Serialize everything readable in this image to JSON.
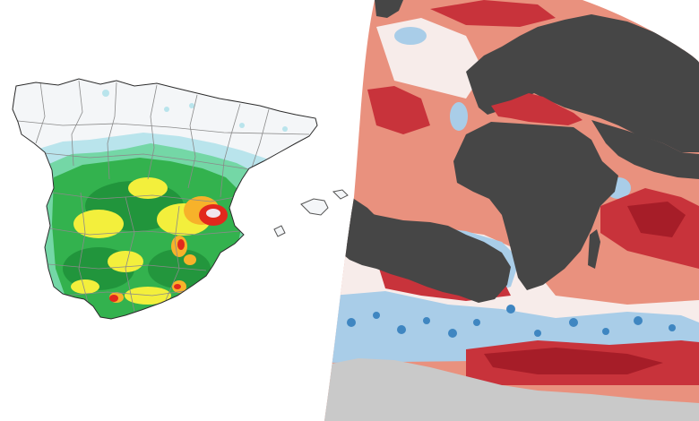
{
  "panels": [
    {
      "id": "iberia",
      "kind": "regional-map",
      "legend": "",
      "palette": {
        "sea": "#ffffff",
        "land_base": "#f4f6f8",
        "border": "#8a8a8a",
        "coast": "#2b2b2b",
        "drizzle": "#b9e4ec",
        "light": "#74d7a6",
        "moderate": "#33b24e",
        "heavy": "#1f8f3a",
        "yellow": "#f3ef3c",
        "orange": "#f7b22a",
        "red": "#e2281d",
        "extreme": "#f1e6f0"
      },
      "precip_class_order": [
        "drizzle",
        "light",
        "moderate",
        "heavy",
        "yellow",
        "orange",
        "red",
        "extreme"
      ]
    },
    {
      "id": "atlantic",
      "kind": "globe-anomaly",
      "legend": "",
      "palette": {
        "land": "#464646",
        "ice": "#c9c9c9",
        "cold": "#3f86c1",
        "cool": "#a9cde8",
        "neutral": "#f7ecea",
        "warm": "#e9917e",
        "hot": "#c8333b",
        "very_hot": "#a61d28"
      },
      "anomaly_class_order": [
        "cold",
        "cool",
        "neutral",
        "warm",
        "hot",
        "very_hot"
      ]
    }
  ]
}
